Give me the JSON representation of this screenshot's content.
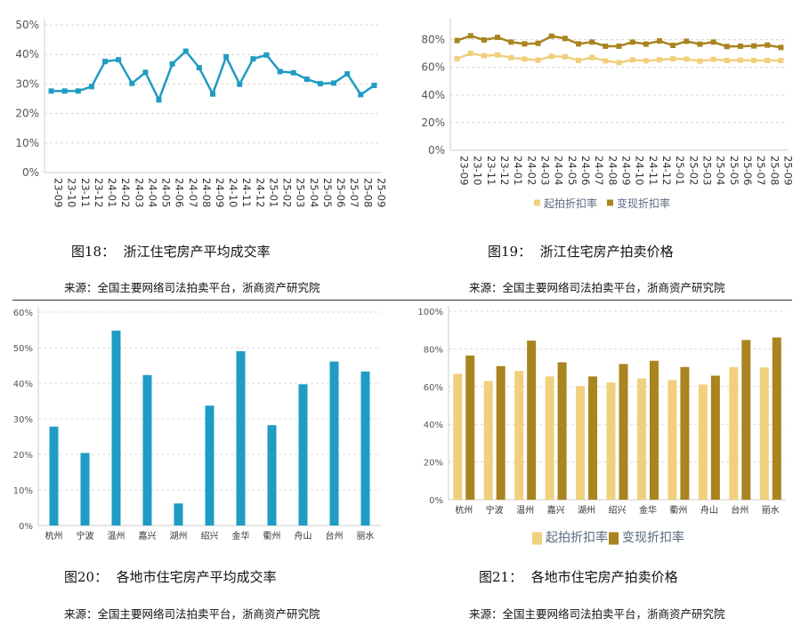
{
  "figures": [
    {
      "caption": "图18：  浙江住宅房产平均成交率",
      "source": "来源：全国主要网络司法拍卖平台，浙商资产研究院"
    },
    {
      "caption": "图19：  浙江住宅房产拍卖价格",
      "source": "来源：全国主要网络司法拍卖平台，浙商资产研究院"
    },
    {
      "caption": "图20：  各地市住宅房产平均成交率",
      "source": "来源：全国主要网络司法拍卖平台，浙商资产研究院"
    },
    {
      "caption": "图21：  各地市住宅房产拍卖价格",
      "source": "来源：全国主要网络司法拍卖平台，浙商资产研究院"
    }
  ],
  "colors": {
    "teal": "#1f9cc3",
    "light_gold": "#f0d07c",
    "dark_gold": "#a9841f"
  },
  "chart_data": [
    {
      "type": "line",
      "x": [
        "23-09",
        "23-10",
        "23-11",
        "23-12",
        "24-01",
        "24-02",
        "24-03",
        "24-04",
        "24-05",
        "24-06",
        "24-07",
        "24-08",
        "24-09",
        "24-10",
        "24-11",
        "24-12",
        "25-01",
        "25-02",
        "25-03",
        "25-04",
        "25-05",
        "25-06",
        "25-07",
        "25-08",
        "25-09"
      ],
      "series": [
        {
          "values": [
            27.6,
            27.6,
            27.6,
            29.1,
            37.6,
            38.2,
            30.2,
            33.9,
            24.6,
            36.8,
            41.1,
            35.5,
            26.6,
            39.2,
            29.9,
            38.5,
            39.8,
            34.2,
            33.8,
            31.6,
            30.1,
            30.3,
            33.4,
            26.4,
            29.5
          ],
          "color": "#1f9cc3"
        }
      ],
      "ylim": [
        0,
        50
      ],
      "yticks": [
        "0%",
        "10%",
        "20%",
        "30%",
        "40%",
        "50%"
      ],
      "grid": true
    },
    {
      "type": "line",
      "x": [
        "23-09",
        "23-10",
        "23-11",
        "23-12",
        "24-01",
        "24-02",
        "24-03",
        "24-04",
        "24-05",
        "24-06",
        "24-07",
        "24-08",
        "24-09",
        "24-10",
        "24-11",
        "24-12",
        "25-01",
        "25-02",
        "25-03",
        "25-04",
        "25-05",
        "25-06",
        "25-07",
        "25-08",
        "25-09"
      ],
      "series": [
        {
          "name": "起拍折扣率",
          "color": "#f0d07c",
          "values": [
            66.2,
            70.1,
            68.4,
            69.0,
            66.9,
            66.0,
            65.2,
            68.0,
            67.7,
            65.0,
            67.1,
            64.7,
            63.4,
            65.4,
            64.7,
            65.5,
            66.2,
            66.0,
            64.5,
            65.8,
            65.0,
            65.2,
            65.0,
            65.0,
            65.0
          ]
        },
        {
          "name": "变现折扣率",
          "color": "#a9841f",
          "values": [
            79.4,
            82.8,
            79.8,
            81.7,
            78.3,
            77.0,
            77.4,
            82.6,
            80.9,
            77.0,
            78.3,
            75.3,
            75.3,
            78.3,
            76.8,
            79.1,
            75.9,
            78.9,
            76.8,
            78.3,
            75.1,
            75.3,
            75.5,
            76.1,
            74.4
          ]
        }
      ],
      "ylim": [
        0,
        92
      ],
      "yticks": [
        "0%",
        "20%",
        "40%",
        "60%",
        "80%"
      ],
      "grid": true,
      "legend": "bottom"
    },
    {
      "type": "bar",
      "categories": [
        "杭州",
        "宁波",
        "温州",
        "嘉兴",
        "湖州",
        "绍兴",
        "金华",
        "衢州",
        "舟山",
        "台州",
        "丽水"
      ],
      "series": [
        {
          "values": [
            27.8,
            20.4,
            54.8,
            42.3,
            6.2,
            33.7,
            49.0,
            28.2,
            39.7,
            46.1,
            43.3
          ],
          "color": "#1f9cc3"
        }
      ],
      "ylim": [
        0,
        60
      ],
      "yticks": [
        "0%",
        "10%",
        "20%",
        "30%",
        "40%",
        "50%",
        "60%"
      ],
      "grid": true
    },
    {
      "type": "bar",
      "categories": [
        "杭州",
        "宁波",
        "温州",
        "嘉兴",
        "湖州",
        "绍兴",
        "金华",
        "衢州",
        "舟山",
        "台州",
        "丽水"
      ],
      "series": [
        {
          "name": "起拍折扣率",
          "color": "#f0d07c",
          "values": [
            66.8,
            63.0,
            68.3,
            65.4,
            60.3,
            62.2,
            64.4,
            63.5,
            61.1,
            70.4,
            70.2
          ]
        },
        {
          "name": "变现折扣率",
          "color": "#a9841f",
          "values": [
            76.5,
            70.9,
            84.4,
            72.9,
            65.4,
            72.0,
            73.7,
            70.4,
            65.8,
            84.7,
            86.1
          ]
        }
      ],
      "ylim": [
        0,
        100
      ],
      "yticks": [
        "0%",
        "20%",
        "40%",
        "60%",
        "80%",
        "100%"
      ],
      "grid": true,
      "legend": "bottom"
    }
  ]
}
